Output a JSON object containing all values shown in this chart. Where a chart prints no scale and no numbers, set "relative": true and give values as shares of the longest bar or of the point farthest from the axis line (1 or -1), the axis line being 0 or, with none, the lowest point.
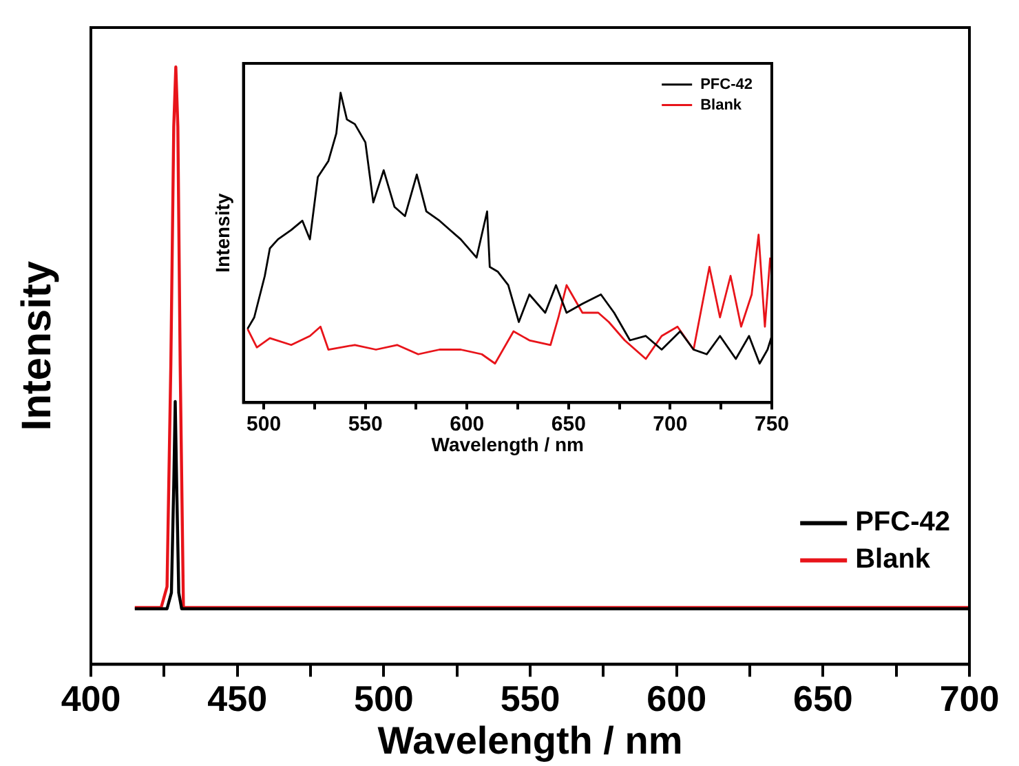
{
  "chart_data": [
    {
      "type": "line",
      "xlabel": "Wavelength / nm",
      "ylabel": "Intensity",
      "relative": true,
      "xlim": [
        400,
        700
      ],
      "xticks": [
        400,
        {
          "value": 425,
          "label": null
        },
        450,
        {
          "value": 475,
          "label": null
        },
        500,
        {
          "value": 525,
          "label": null
        },
        550,
        {
          "value": 575,
          "label": null
        },
        600,
        {
          "value": 625,
          "label": null
        },
        650,
        {
          "value": 675,
          "label": null
        },
        700
      ],
      "legend": "bottom right",
      "grid": false,
      "marker": "none",
      "line_style": "solid",
      "series": [
        {
          "name": "PFC-42",
          "color": "#000000",
          "x": [
            415,
            426,
            427.5,
            428.3,
            428.8,
            429.3,
            430,
            431,
            440,
            500,
            600,
            700
          ],
          "values": [
            0.093,
            0.093,
            0.12,
            0.3,
            0.44,
            0.3,
            0.12,
            0.093,
            0.093,
            0.093,
            0.093,
            0.093
          ]
        },
        {
          "name": "Blank",
          "color": "#e8141a",
          "x": [
            415,
            424,
            426,
            427.3,
            428.3,
            429,
            429.7,
            430.5,
            431.6,
            440,
            500,
            600,
            700
          ],
          "values": [
            0.095,
            0.095,
            0.13,
            0.5,
            0.9,
            1,
            0.9,
            0.5,
            0.095,
            0.095,
            0.095,
            0.095,
            0.095
          ]
        }
      ]
    },
    {
      "type": "line",
      "xlabel": "Wavelength / nm",
      "ylabel": "Intensity",
      "relative": true,
      "xlim": [
        490,
        750
      ],
      "xticks": [
        500,
        {
          "value": 525,
          "label": null
        },
        550,
        {
          "value": 575,
          "label": null
        },
        600,
        {
          "value": 625,
          "label": null
        },
        650,
        {
          "value": 675,
          "label": null
        },
        700,
        {
          "value": 725,
          "label": null
        },
        750
      ],
      "legend": "top right",
      "grid": false,
      "marker": "none",
      "line_style": "solid",
      "series": [
        {
          "name": "PFC-42",
          "color": "#000000",
          "x": [
            492,
            495.3,
            500.5,
            503,
            507,
            513.5,
            519,
            522.7,
            526.6,
            531.8,
            535.7,
            537.8,
            540.9,
            544.8,
            550,
            553.9,
            559,
            564.3,
            569.5,
            575.3,
            580,
            586.5,
            591.7,
            596.9,
            604.7,
            609.9,
            611.2,
            615.1,
            620.3,
            625.5,
            630.7,
            638.5,
            643.8,
            649,
            656.8,
            665.9,
            672.4,
            680.2,
            688,
            695.8,
            704.9,
            711.5,
            718,
            724.5,
            732.3,
            738.8,
            744,
            747.9,
            750
          ],
          "values": [
            0.238,
            0.275,
            0.409,
            0.498,
            0.527,
            0.557,
            0.587,
            0.527,
            0.728,
            0.78,
            0.869,
            1,
            0.914,
            0.899,
            0.84,
            0.646,
            0.75,
            0.632,
            0.602,
            0.736,
            0.617,
            0.587,
            0.557,
            0.527,
            0.468,
            0.617,
            0.438,
            0.423,
            0.379,
            0.26,
            0.349,
            0.29,
            0.379,
            0.29,
            0.319,
            0.349,
            0.29,
            0.201,
            0.215,
            0.171,
            0.23,
            0.171,
            0.156,
            0.215,
            0.141,
            0.215,
            0.126,
            0.171,
            0.215
          ]
        },
        {
          "name": "Blank",
          "color": "#e8141a",
          "x": [
            492,
            496.6,
            503,
            513.5,
            522.7,
            527.9,
            531.8,
            544.8,
            555.2,
            565.6,
            576,
            586.5,
            596.9,
            607.3,
            613.8,
            622.9,
            630.7,
            641.1,
            645,
            649,
            656.8,
            664.6,
            669.8,
            677.6,
            688,
            695.8,
            703.6,
            711.5,
            719.3,
            724.5,
            729.7,
            734.9,
            740.1,
            743.5,
            746.6,
            749.2
          ],
          "values": [
            0.238,
            0.178,
            0.208,
            0.186,
            0.215,
            0.245,
            0.171,
            0.186,
            0.171,
            0.186,
            0.156,
            0.171,
            0.171,
            0.156,
            0.126,
            0.23,
            0.201,
            0.186,
            0.275,
            0.379,
            0.29,
            0.29,
            0.26,
            0.201,
            0.141,
            0.215,
            0.245,
            0.171,
            0.438,
            0.275,
            0.409,
            0.245,
            0.349,
            0.542,
            0.245,
            0.468
          ]
        }
      ]
    }
  ]
}
